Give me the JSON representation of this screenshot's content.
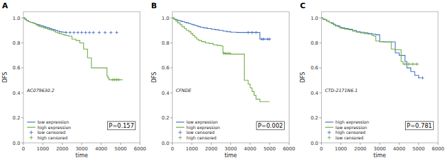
{
  "chart_data": [
    {
      "type": "step",
      "title": "A",
      "annotations": [
        "AC079630.2",
        "P=0.157"
      ],
      "x_label": "time",
      "y_label": "DFS",
      "legend": "lower left",
      "grid": false,
      "xlim": [
        0,
        6000
      ],
      "ylim": [
        0,
        1.05
      ],
      "xticks": [
        0,
        1000,
        2000,
        3000,
        4000,
        5000,
        6000
      ],
      "yticks": [
        {
          "value": 0.0,
          "label": "0.0"
        },
        0.2,
        0.4,
        0.6,
        0.8,
        {
          "value": 1.0,
          "label": "1.0"
        }
      ],
      "series": [
        {
          "name": "low expression",
          "color": "#4472c4",
          "type": "step",
          "x": [
            0,
            80,
            150,
            250,
            350,
            450,
            550,
            650,
            750,
            850,
            950,
            1050,
            1150,
            1250,
            1350,
            1450,
            1550,
            1650,
            1750,
            1850,
            1950,
            2050,
            2150
          ],
          "values": [
            1.0,
            0.99,
            0.98,
            0.97,
            0.965,
            0.96,
            0.955,
            0.95,
            0.945,
            0.94,
            0.935,
            0.93,
            0.925,
            0.92,
            0.915,
            0.91,
            0.905,
            0.9,
            0.895,
            0.89,
            0.887,
            0.885,
            0.883
          ]
        },
        {
          "name": "high expression",
          "color": "#70ad47",
          "type": "step",
          "x": [
            0,
            80,
            150,
            250,
            350,
            450,
            550,
            650,
            750,
            850,
            950,
            1050,
            1150,
            1250,
            1350,
            1450,
            1550,
            1650,
            1750,
            1850,
            1950,
            2050,
            2150,
            2300,
            2500,
            2700,
            2900,
            3100,
            3300,
            3500,
            4300,
            4350,
            4400,
            5100
          ],
          "values": [
            1.0,
            0.99,
            0.98,
            0.97,
            0.965,
            0.96,
            0.955,
            0.945,
            0.935,
            0.93,
            0.925,
            0.92,
            0.915,
            0.91,
            0.905,
            0.9,
            0.895,
            0.885,
            0.88,
            0.875,
            0.87,
            0.865,
            0.86,
            0.855,
            0.83,
            0.82,
            0.8,
            0.75,
            0.68,
            0.6,
            0.535,
            0.52,
            0.505,
            0.505
          ]
        },
        {
          "name": "low censored",
          "color": "#4472c4",
          "type": "scatter",
          "marker": "+",
          "x": [
            2200,
            2400,
            2600,
            2800,
            3000,
            3200,
            3400,
            3600,
            3900,
            4200,
            4500,
            4800
          ],
          "values": [
            0.883,
            0.883,
            0.883,
            0.883,
            0.883,
            0.883,
            0.883,
            0.883,
            0.883,
            0.883,
            0.883,
            0.883
          ]
        },
        {
          "name": "high censored",
          "color": "#70ad47",
          "type": "scatter",
          "marker": "+",
          "x": [
            4600,
            4700,
            4800,
            4900
          ],
          "values": [
            0.505,
            0.505,
            0.505,
            0.505
          ]
        }
      ]
    },
    {
      "type": "step",
      "title": "B",
      "annotations": [
        "CFNDE",
        "P=0.002"
      ],
      "x_label": "time",
      "y_label": "DFS",
      "legend": "lower left",
      "grid": false,
      "xlim": [
        0,
        6000
      ],
      "ylim": [
        0,
        1.05
      ],
      "xticks": [
        0,
        1000,
        2000,
        3000,
        4000,
        5000,
        6000
      ],
      "yticks": [
        {
          "value": 0.0,
          "label": "0.0"
        },
        0.2,
        0.4,
        0.6,
        0.8,
        {
          "value": 1.0,
          "label": "1.0"
        }
      ],
      "series": [
        {
          "name": "low expression",
          "color": "#4472c4",
          "type": "step",
          "x": [
            0,
            80,
            180,
            280,
            400,
            500,
            620,
            720,
            850,
            950,
            1050,
            1150,
            1250,
            1350,
            1450,
            1600,
            1800,
            2000,
            2200,
            2400,
            2600,
            2800,
            3000,
            3300,
            3700,
            4000,
            4200,
            4500,
            4800,
            5000
          ],
          "values": [
            1.0,
            0.99,
            0.985,
            0.98,
            0.975,
            0.97,
            0.965,
            0.96,
            0.955,
            0.95,
            0.945,
            0.94,
            0.935,
            0.93,
            0.925,
            0.92,
            0.915,
            0.91,
            0.905,
            0.9,
            0.895,
            0.89,
            0.885,
            0.883,
            0.883,
            0.883,
            0.883,
            0.83,
            0.83,
            0.83
          ]
        },
        {
          "name": "high expression",
          "color": "#70ad47",
          "type": "step",
          "x": [
            0,
            80,
            180,
            280,
            400,
            500,
            620,
            720,
            850,
            950,
            1050,
            1150,
            1250,
            1350,
            1500,
            1700,
            1900,
            2100,
            2300,
            2500,
            2600,
            2700,
            3000,
            3300,
            3700,
            3900,
            4000,
            4100,
            4200,
            4300,
            4500,
            5000
          ],
          "values": [
            1.0,
            0.99,
            0.975,
            0.96,
            0.945,
            0.93,
            0.915,
            0.9,
            0.89,
            0.875,
            0.86,
            0.845,
            0.83,
            0.82,
            0.81,
            0.8,
            0.795,
            0.785,
            0.78,
            0.775,
            0.72,
            0.715,
            0.71,
            0.71,
            0.5,
            0.47,
            0.44,
            0.41,
            0.38,
            0.35,
            0.33,
            0.33
          ]
        },
        {
          "name": "low censored",
          "color": "#4472c4",
          "type": "scatter",
          "marker": "+",
          "x": [
            3900,
            4100,
            4300,
            4600,
            4700,
            4900,
            5000
          ],
          "values": [
            0.883,
            0.883,
            0.883,
            0.83,
            0.83,
            0.83,
            0.83
          ]
        },
        {
          "name": "high censored",
          "color": "#70ad47",
          "type": "scatter",
          "marker": "+",
          "x": [
            2650,
            2750,
            2850,
            2950
          ],
          "values": [
            0.715,
            0.715,
            0.715,
            0.715
          ]
        }
      ]
    },
    {
      "type": "step",
      "title": "C",
      "annotations": [
        "CTD-2171N6.1",
        "P=0.781"
      ],
      "x_label": "time",
      "y_label": "DFS",
      "legend": "lower left",
      "grid": false,
      "xlim": [
        0,
        6000
      ],
      "ylim": [
        0,
        1.05
      ],
      "xticks": [
        0,
        1000,
        2000,
        3000,
        4000,
        5000,
        6000
      ],
      "yticks": [
        {
          "value": 0.0,
          "label": "0.0"
        },
        0.2,
        0.4,
        0.6,
        0.8,
        {
          "value": 1.0,
          "label": "1.0"
        }
      ],
      "series": [
        {
          "name": "high expression",
          "color": "#4472c4",
          "type": "step",
          "x": [
            0,
            80,
            180,
            280,
            400,
            500,
            620,
            720,
            850,
            950,
            1050,
            1200,
            1400,
            1600,
            1800,
            2000,
            2200,
            2400,
            2600,
            2800,
            3000,
            3200,
            3400,
            3600,
            3800,
            4000,
            4200,
            4300,
            4400,
            4600,
            4800,
            5000,
            5100
          ],
          "values": [
            1.0,
            0.99,
            0.985,
            0.975,
            0.965,
            0.96,
            0.95,
            0.94,
            0.935,
            0.925,
            0.92,
            0.915,
            0.91,
            0.9,
            0.89,
            0.885,
            0.88,
            0.875,
            0.87,
            0.865,
            0.81,
            0.808,
            0.808,
            0.808,
            0.72,
            0.7,
            0.7,
            0.65,
            0.6,
            0.57,
            0.54,
            0.52,
            0.52
          ]
        },
        {
          "name": "low expression",
          "color": "#70ad47",
          "type": "step",
          "x": [
            0,
            80,
            180,
            280,
            400,
            500,
            620,
            720,
            850,
            950,
            1050,
            1200,
            1400,
            1600,
            1800,
            2000,
            2200,
            2400,
            2600,
            2700,
            2800,
            3000,
            3200,
            3400,
            3600,
            3800,
            4000,
            4100,
            4200,
            4400,
            4600,
            5000
          ],
          "values": [
            1.0,
            0.99,
            0.985,
            0.975,
            0.965,
            0.955,
            0.945,
            0.935,
            0.93,
            0.92,
            0.915,
            0.91,
            0.905,
            0.895,
            0.885,
            0.88,
            0.875,
            0.87,
            0.86,
            0.855,
            0.815,
            0.81,
            0.808,
            0.808,
            0.75,
            0.745,
            0.745,
            0.65,
            0.63,
            0.63,
            0.63,
            0.63
          ]
        },
        {
          "name": "high censored",
          "color": "#4472c4",
          "type": "scatter",
          "marker": "+",
          "x": [
            5200
          ],
          "values": [
            0.52
          ]
        },
        {
          "name": "low censored",
          "color": "#70ad47",
          "type": "scatter",
          "marker": "+",
          "x": [
            4300,
            4500,
            4700,
            4900
          ],
          "values": [
            0.63,
            0.63,
            0.63,
            0.63
          ]
        }
      ]
    }
  ]
}
